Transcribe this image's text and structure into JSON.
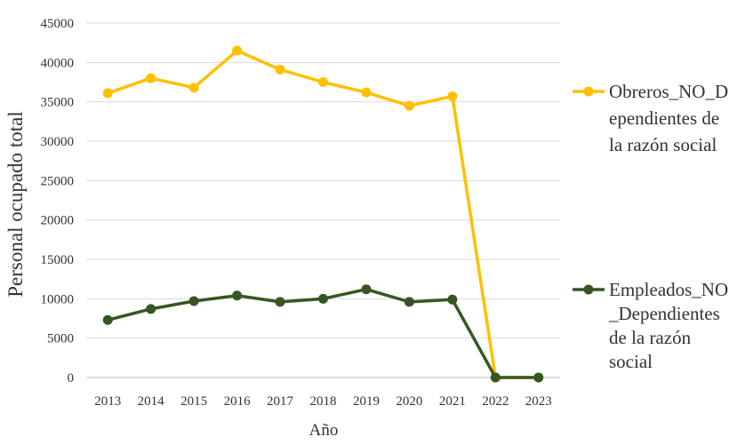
{
  "chart_data": {
    "type": "line",
    "title": "",
    "xlabel": "Año",
    "ylabel": "Personal ocupado total",
    "categories": [
      "2013",
      "2014",
      "2015",
      "2016",
      "2017",
      "2018",
      "2019",
      "2020",
      "2021",
      "2022",
      "2023"
    ],
    "ylim": [
      0,
      45000
    ],
    "yticks": [
      0,
      5000,
      10000,
      15000,
      20000,
      25000,
      30000,
      35000,
      40000,
      45000
    ],
    "ytick_labels": [
      "0",
      "5000",
      "10000",
      "15000",
      "20000",
      "25000",
      "30000",
      "35000",
      "40000",
      "45000"
    ],
    "grid": true,
    "legend_position": "right",
    "series": [
      {
        "name": "Obreros_NO_Dependientes de la razón social",
        "legend_lines": [
          "Obreros_NO_D",
          "ependientes de",
          "la razón social"
        ],
        "color": "#FFC000",
        "values": [
          36100,
          38000,
          36800,
          41500,
          39100,
          37500,
          36200,
          34500,
          35700,
          0,
          0
        ]
      },
      {
        "name": "Empleados_NO_Dependientes de la razón social",
        "legend_lines": [
          "Empleados_NO",
          "_Dependientes",
          "de la razón",
          "social"
        ],
        "color": "#375623",
        "values": [
          7300,
          8700,
          9700,
          10400,
          9600,
          10000,
          11200,
          9600,
          9900,
          0,
          0
        ]
      }
    ]
  }
}
